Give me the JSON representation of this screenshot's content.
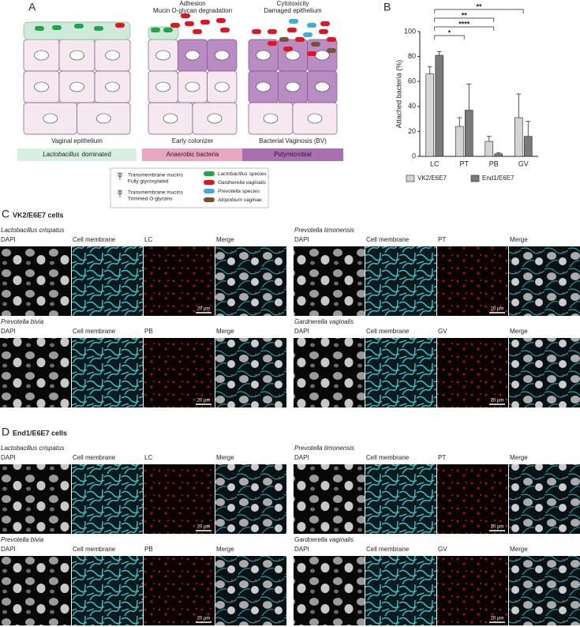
{
  "panel_a": {
    "label": "A",
    "stages": [
      {
        "header": [],
        "caption": "Vaginal epithelium",
        "tag": {
          "italic": "Lactobacillus",
          "text": "dominated"
        }
      },
      {
        "header": [
          "Adhesion",
          "Mucin O-glycan degradation"
        ],
        "caption": "Early colonizer",
        "tag": {
          "text": "Anaerobic bacteria"
        }
      },
      {
        "header": [
          "Cytotoxicity",
          "Damaged epithelium"
        ],
        "caption": "Bacterial Vaginosis (BV)",
        "tag": {
          "text": "Polymicrobial"
        }
      }
    ],
    "legend": {
      "mucins": [
        {
          "lines": [
            "Transmembrane mucins",
            "Fully glycosylated"
          ]
        },
        {
          "lines": [
            "Transmembrane mucins",
            "Trimmed O-glycans"
          ]
        }
      ],
      "bacteria": [
        {
          "italic": "Lactobacillus",
          "text": "species",
          "color": "#1aa84a"
        },
        {
          "italic": "Gardnerella vaginalis",
          "color": "#e8121c"
        },
        {
          "italic": "Prevotella",
          "text": "species",
          "color": "#3aaee0"
        },
        {
          "italic": "Atopobium vaginae",
          "color": "#7a5230"
        }
      ]
    }
  },
  "panel_b_label": "B",
  "chart_data": {
    "type": "bar",
    "y_label": "Attached bacteria (%)",
    "categories": [
      "LC",
      "PT",
      "PB",
      "GV"
    ],
    "series": [
      {
        "name": "VK2/E6E7",
        "color": "#d4d4d4",
        "values": [
          66,
          24,
          12,
          31
        ],
        "errors": [
          6,
          7,
          4,
          19
        ]
      },
      {
        "name": "End1/E6E7",
        "color": "#7a7a7a",
        "values": [
          81,
          37,
          2,
          16
        ],
        "errors": [
          3,
          21,
          1,
          12
        ]
      }
    ],
    "ylim": [
      0,
      100
    ],
    "yticks": [
      0,
      20,
      40,
      60,
      80,
      100
    ],
    "annotations": [
      {
        "text": "**",
        "between": [
          "LC",
          "GV"
        ]
      },
      {
        "text": "**",
        "between": [
          "LC",
          "PB"
        ]
      },
      {
        "text": "****",
        "between": [
          "LC",
          "PB"
        ]
      },
      {
        "text": "*",
        "between": [
          "LC",
          "PT"
        ]
      }
    ]
  },
  "panels": [
    {
      "label": "C",
      "title": "VK2/E6E7 cells",
      "rows": [
        {
          "species": "Lactobacillus crispatus",
          "channels": [
            "DAPI",
            "Cell membrane",
            "LC",
            "Merge"
          ],
          "scale": "20 µm"
        },
        {
          "species": "Prevotella timonensis",
          "channels": [
            "DAPI",
            "Cell membrane",
            "PT",
            "Merge"
          ],
          "scale": "20 µm"
        },
        {
          "species": "Prevotella bivia",
          "channels": [
            "DAPI",
            "Cell membrane",
            "PB",
            "Merge"
          ],
          "scale": "20 µm"
        },
        {
          "species": "Gardnerella vaginalis",
          "channels": [
            "DAPI",
            "Cell membrane",
            "GV",
            "Merge"
          ],
          "scale": "20 µm"
        }
      ]
    },
    {
      "label": "D",
      "title": "End1/E6E7 cells",
      "rows": [
        {
          "species": "Lactobacillus crispatus",
          "channels": [
            "DAPI",
            "Cell membrane",
            "LC",
            "Merge"
          ],
          "scale": "20 µm"
        },
        {
          "species": "Prevotella timonensis",
          "channels": [
            "DAPI",
            "Cell membrane",
            "PT",
            "Merge"
          ],
          "scale": "20 µm"
        },
        {
          "species": "Prevotella bivia",
          "channels": [
            "DAPI",
            "Cell membrane",
            "PB",
            "Merge"
          ],
          "scale": "20 µm"
        },
        {
          "species": "Gardnerella vaginalis",
          "channels": [
            "DAPI",
            "Cell membrane",
            "GV",
            "Merge"
          ],
          "scale": "20 µm"
        }
      ]
    }
  ]
}
